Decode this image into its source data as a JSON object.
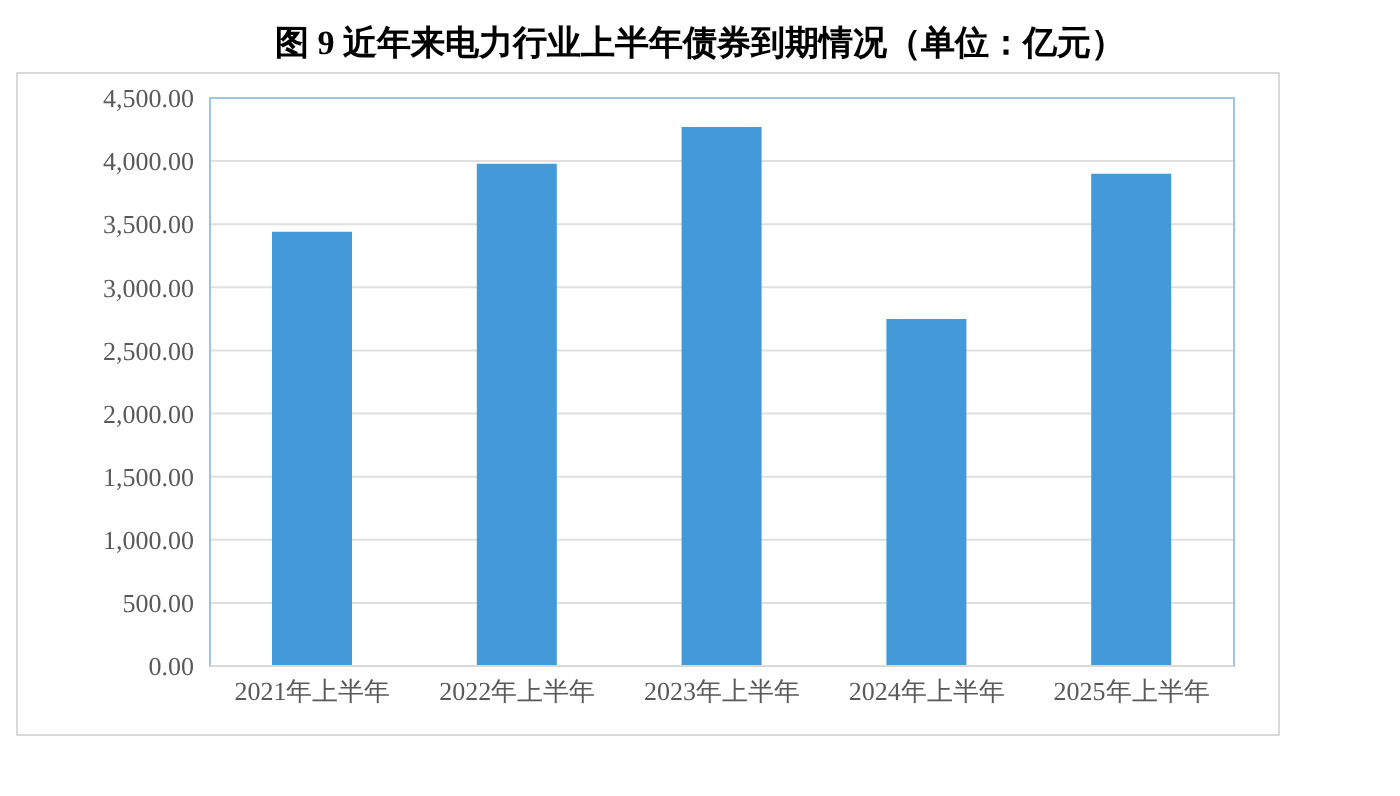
{
  "chart_data": {
    "type": "bar",
    "title": "图 9  近年来电力行业上半年债券到期情况（单位：亿元）",
    "categories": [
      "2021年上半年",
      "2022年上半年",
      "2023年上半年",
      "2024年上半年",
      "2025年上半年"
    ],
    "values": [
      3440,
      3980,
      4270,
      2750,
      3900
    ],
    "color": "#449ad9",
    "ylim": [
      0,
      4500
    ],
    "yticks": [
      {
        "value": 0,
        "label": "0.00"
      },
      {
        "value": 500,
        "label": "500.00"
      },
      {
        "value": 1000,
        "label": "1,000.00"
      },
      {
        "value": 1500,
        "label": "1,500.00"
      },
      {
        "value": 2000,
        "label": "2,000.00"
      },
      {
        "value": 2500,
        "label": "2,500.00"
      },
      {
        "value": 3000,
        "label": "3,000.00"
      },
      {
        "value": 3500,
        "label": "3,500.00"
      },
      {
        "value": 4000,
        "label": "4,000.00"
      },
      {
        "value": 4500,
        "label": "4,500.00"
      }
    ],
    "grid": "y"
  }
}
